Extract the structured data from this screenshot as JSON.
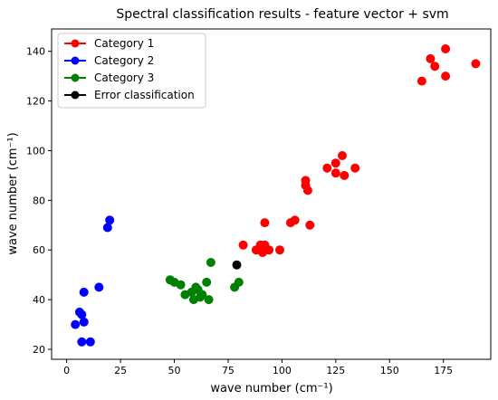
{
  "chart_data": {
    "type": "scatter",
    "title": "Spectral classification results - feature vector + svm",
    "xlabel": "wave number (cm⁻¹)",
    "ylabel": "wave number (cm⁻¹)",
    "xlim": [
      -7,
      197
    ],
    "ylim": [
      16,
      149
    ],
    "xticks": [
      0,
      25,
      50,
      75,
      100,
      125,
      150,
      175
    ],
    "yticks": [
      20,
      40,
      60,
      80,
      100,
      120,
      140
    ],
    "grid": false,
    "legend_position": "top-left",
    "series": [
      {
        "name": "Category 1",
        "color": "#ff0000",
        "points": [
          [
            176,
            141
          ],
          [
            169,
            137
          ],
          [
            171,
            134
          ],
          [
            165,
            128
          ],
          [
            176,
            130
          ],
          [
            190,
            135
          ],
          [
            128,
            98
          ],
          [
            125,
            95
          ],
          [
            121,
            93
          ],
          [
            125,
            91
          ],
          [
            129,
            90
          ],
          [
            134,
            93
          ],
          [
            111,
            88
          ],
          [
            111,
            86
          ],
          [
            112,
            84
          ],
          [
            106,
            72
          ],
          [
            104,
            71
          ],
          [
            113,
            70
          ],
          [
            92,
            71
          ],
          [
            82,
            62
          ],
          [
            88,
            60
          ],
          [
            90,
            62
          ],
          [
            92,
            62
          ],
          [
            94,
            60
          ],
          [
            91,
            59
          ],
          [
            99,
            60
          ]
        ]
      },
      {
        "name": "Category 2",
        "color": "#0000ff",
        "points": [
          [
            20,
            72
          ],
          [
            19,
            69
          ],
          [
            15,
            45
          ],
          [
            8,
            43
          ],
          [
            6,
            35
          ],
          [
            7,
            34
          ],
          [
            8,
            31
          ],
          [
            4,
            30
          ],
          [
            7,
            23
          ],
          [
            11,
            23
          ]
        ]
      },
      {
        "name": "Category 3",
        "color": "#008000",
        "points": [
          [
            67,
            55
          ],
          [
            48,
            48
          ],
          [
            50,
            47
          ],
          [
            53,
            46
          ],
          [
            60,
            45
          ],
          [
            65,
            47
          ],
          [
            61,
            44
          ],
          [
            58,
            43
          ],
          [
            63,
            42
          ],
          [
            55,
            42
          ],
          [
            62,
            41
          ],
          [
            59,
            40
          ],
          [
            66,
            40
          ],
          [
            80,
            47
          ],
          [
            78,
            45
          ]
        ]
      },
      {
        "name": "Error classification",
        "color": "#000000",
        "points": [
          [
            79,
            54
          ]
        ]
      }
    ]
  }
}
